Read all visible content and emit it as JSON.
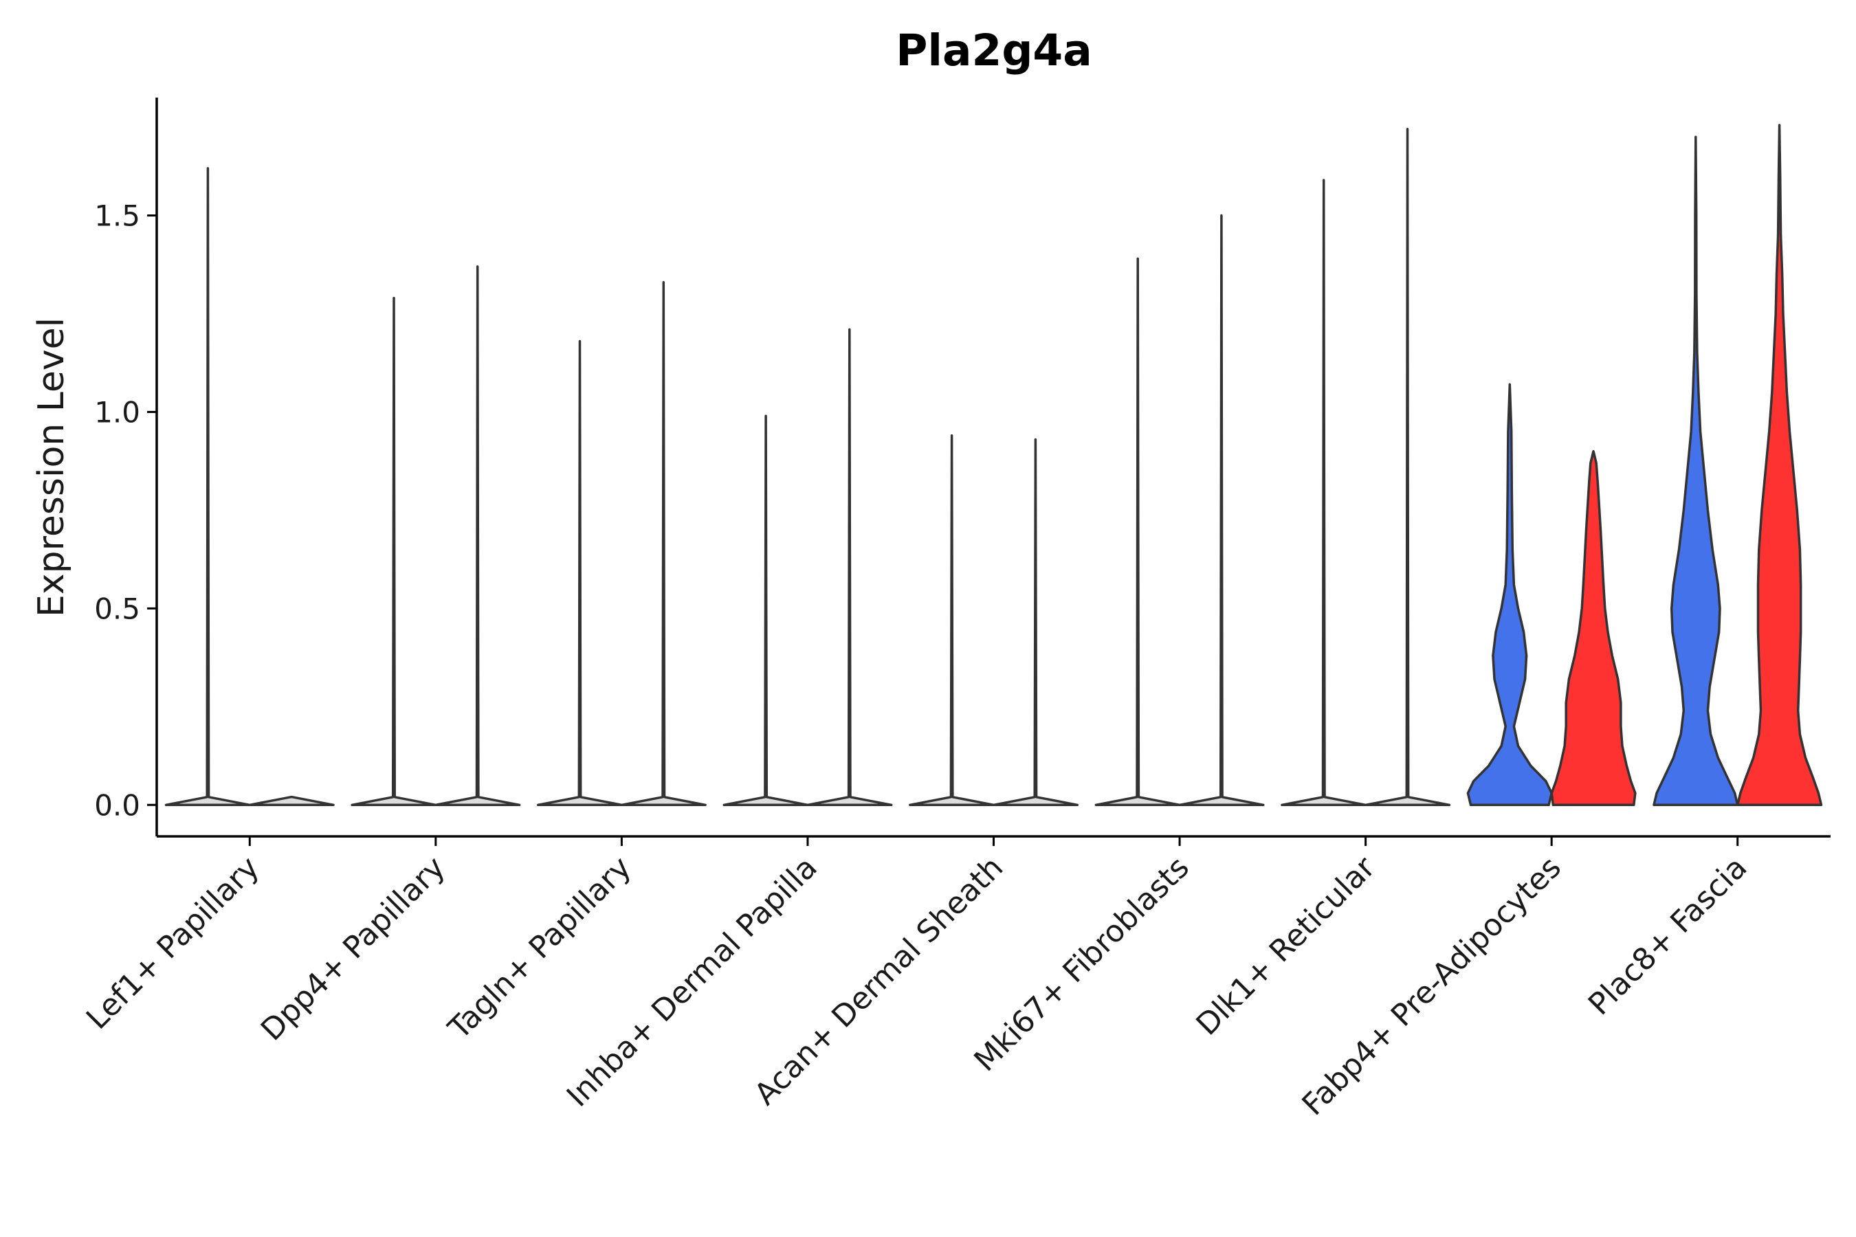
{
  "chart_data": {
    "type": "violin",
    "title": "Pla2g4a",
    "xlabel": "",
    "ylabel": "Expression Level",
    "ylim": [
      -0.08,
      1.8
    ],
    "yticks": [
      0.0,
      0.5,
      1.0,
      1.5
    ],
    "ytick_labels": [
      "0.0",
      "0.5",
      "1.0",
      "1.5"
    ],
    "grid": false,
    "legend": "none",
    "split_colors": {
      "left": "#4472EA",
      "right": "#FF3232"
    },
    "neutral_fill": "#dddddd",
    "categories": [
      "Lef1+ Papillary",
      "Dpp4+ Papillary",
      "Tagln+ Papillary",
      "Inhba+ Dermal Papilla",
      "Acan+ Dermal Sheath",
      "Mki67+ Fibroblasts",
      "Dlk1+ Reticular",
      "Fabp4+ Pre-Adipocytes",
      "Plac8+ Fascia"
    ],
    "series": [
      {
        "name": "left",
        "max_values": [
          1.62,
          1.29,
          1.18,
          0.99,
          0.94,
          1.39,
          1.59,
          1.07,
          1.7
        ],
        "density": [
          [
            [
              0,
              1
            ],
            [
              0.02,
              0.02
            ],
            [
              1.62,
              0
            ]
          ],
          [
            [
              0,
              1
            ],
            [
              0.02,
              0.02
            ],
            [
              1.29,
              0
            ]
          ],
          [
            [
              0,
              1
            ],
            [
              0.02,
              0.02
            ],
            [
              1.18,
              0
            ]
          ],
          [
            [
              0,
              1
            ],
            [
              0.02,
              0.02
            ],
            [
              0.99,
              0
            ]
          ],
          [
            [
              0,
              1
            ],
            [
              0.02,
              0.02
            ],
            [
              0.94,
              0
            ]
          ],
          [
            [
              0,
              1
            ],
            [
              0.02,
              0.02
            ],
            [
              1.39,
              0
            ]
          ],
          [
            [
              0,
              1
            ],
            [
              0.02,
              0.02
            ],
            [
              1.59,
              0
            ]
          ],
          [
            [
              0,
              0.28
            ],
            [
              0.03,
              0.3
            ],
            [
              0.06,
              0.26
            ],
            [
              0.1,
              0.15
            ],
            [
              0.15,
              0.06
            ],
            [
              0.2,
              0.03
            ],
            [
              0.26,
              0.07
            ],
            [
              0.32,
              0.11
            ],
            [
              0.38,
              0.12
            ],
            [
              0.44,
              0.1
            ],
            [
              0.5,
              0.06
            ],
            [
              0.56,
              0.03
            ],
            [
              0.65,
              0.02
            ],
            [
              0.8,
              0.015
            ],
            [
              0.95,
              0.012
            ],
            [
              1.07,
              0
            ]
          ],
          [
            [
              0,
              0.45
            ],
            [
              0.03,
              0.42
            ],
            [
              0.07,
              0.34
            ],
            [
              0.12,
              0.24
            ],
            [
              0.18,
              0.16
            ],
            [
              0.24,
              0.13
            ],
            [
              0.3,
              0.15
            ],
            [
              0.37,
              0.2
            ],
            [
              0.44,
              0.25
            ],
            [
              0.5,
              0.26
            ],
            [
              0.56,
              0.24
            ],
            [
              0.65,
              0.18
            ],
            [
              0.75,
              0.13
            ],
            [
              0.85,
              0.09
            ],
            [
              0.95,
              0.05
            ],
            [
              1.05,
              0.03
            ],
            [
              1.15,
              0.015
            ],
            [
              1.3,
              0.008
            ],
            [
              1.5,
              0.006
            ],
            [
              1.7,
              0
            ]
          ]
        ]
      },
      {
        "name": "right",
        "max_values": [
          0.0,
          1.37,
          1.33,
          1.21,
          0.93,
          1.5,
          1.72,
          0.9,
          1.73
        ],
        "density": [
          [
            [
              0,
              1
            ],
            [
              0.02,
              0.02
            ],
            [
              0.02,
              0
            ]
          ],
          [
            [
              0,
              1
            ],
            [
              0.02,
              0.02
            ],
            [
              1.37,
              0
            ]
          ],
          [
            [
              0,
              1
            ],
            [
              0.02,
              0.02
            ],
            [
              1.33,
              0
            ]
          ],
          [
            [
              0,
              1
            ],
            [
              0.02,
              0.02
            ],
            [
              1.21,
              0
            ]
          ],
          [
            [
              0,
              1
            ],
            [
              0.02,
              0.02
            ],
            [
              0.93,
              0
            ]
          ],
          [
            [
              0,
              1
            ],
            [
              0.02,
              0.02
            ],
            [
              1.5,
              0
            ]
          ],
          [
            [
              0,
              1
            ],
            [
              0.02,
              0.02
            ],
            [
              1.72,
              0
            ]
          ],
          [
            [
              0,
              0.28
            ],
            [
              0.03,
              0.29
            ],
            [
              0.06,
              0.26
            ],
            [
              0.1,
              0.23
            ],
            [
              0.15,
              0.2
            ],
            [
              0.2,
              0.19
            ],
            [
              0.26,
              0.19
            ],
            [
              0.32,
              0.17
            ],
            [
              0.38,
              0.13
            ],
            [
              0.44,
              0.1
            ],
            [
              0.5,
              0.08
            ],
            [
              0.56,
              0.07
            ],
            [
              0.63,
              0.06
            ],
            [
              0.7,
              0.05
            ],
            [
              0.76,
              0.04
            ],
            [
              0.82,
              0.03
            ],
            [
              0.87,
              0.02
            ],
            [
              0.9,
              0
            ]
          ],
          [
            [
              0,
              0.45
            ],
            [
              0.03,
              0.42
            ],
            [
              0.07,
              0.36
            ],
            [
              0.12,
              0.28
            ],
            [
              0.18,
              0.22
            ],
            [
              0.24,
              0.2
            ],
            [
              0.3,
              0.21
            ],
            [
              0.37,
              0.22
            ],
            [
              0.44,
              0.23
            ],
            [
              0.5,
              0.23
            ],
            [
              0.56,
              0.23
            ],
            [
              0.65,
              0.22
            ],
            [
              0.75,
              0.19
            ],
            [
              0.85,
              0.15
            ],
            [
              0.95,
              0.11
            ],
            [
              1.05,
              0.08
            ],
            [
              1.15,
              0.06
            ],
            [
              1.25,
              0.04
            ],
            [
              1.35,
              0.03
            ],
            [
              1.45,
              0.015
            ],
            [
              1.6,
              0.008
            ],
            [
              1.73,
              0
            ]
          ]
        ]
      }
    ]
  }
}
